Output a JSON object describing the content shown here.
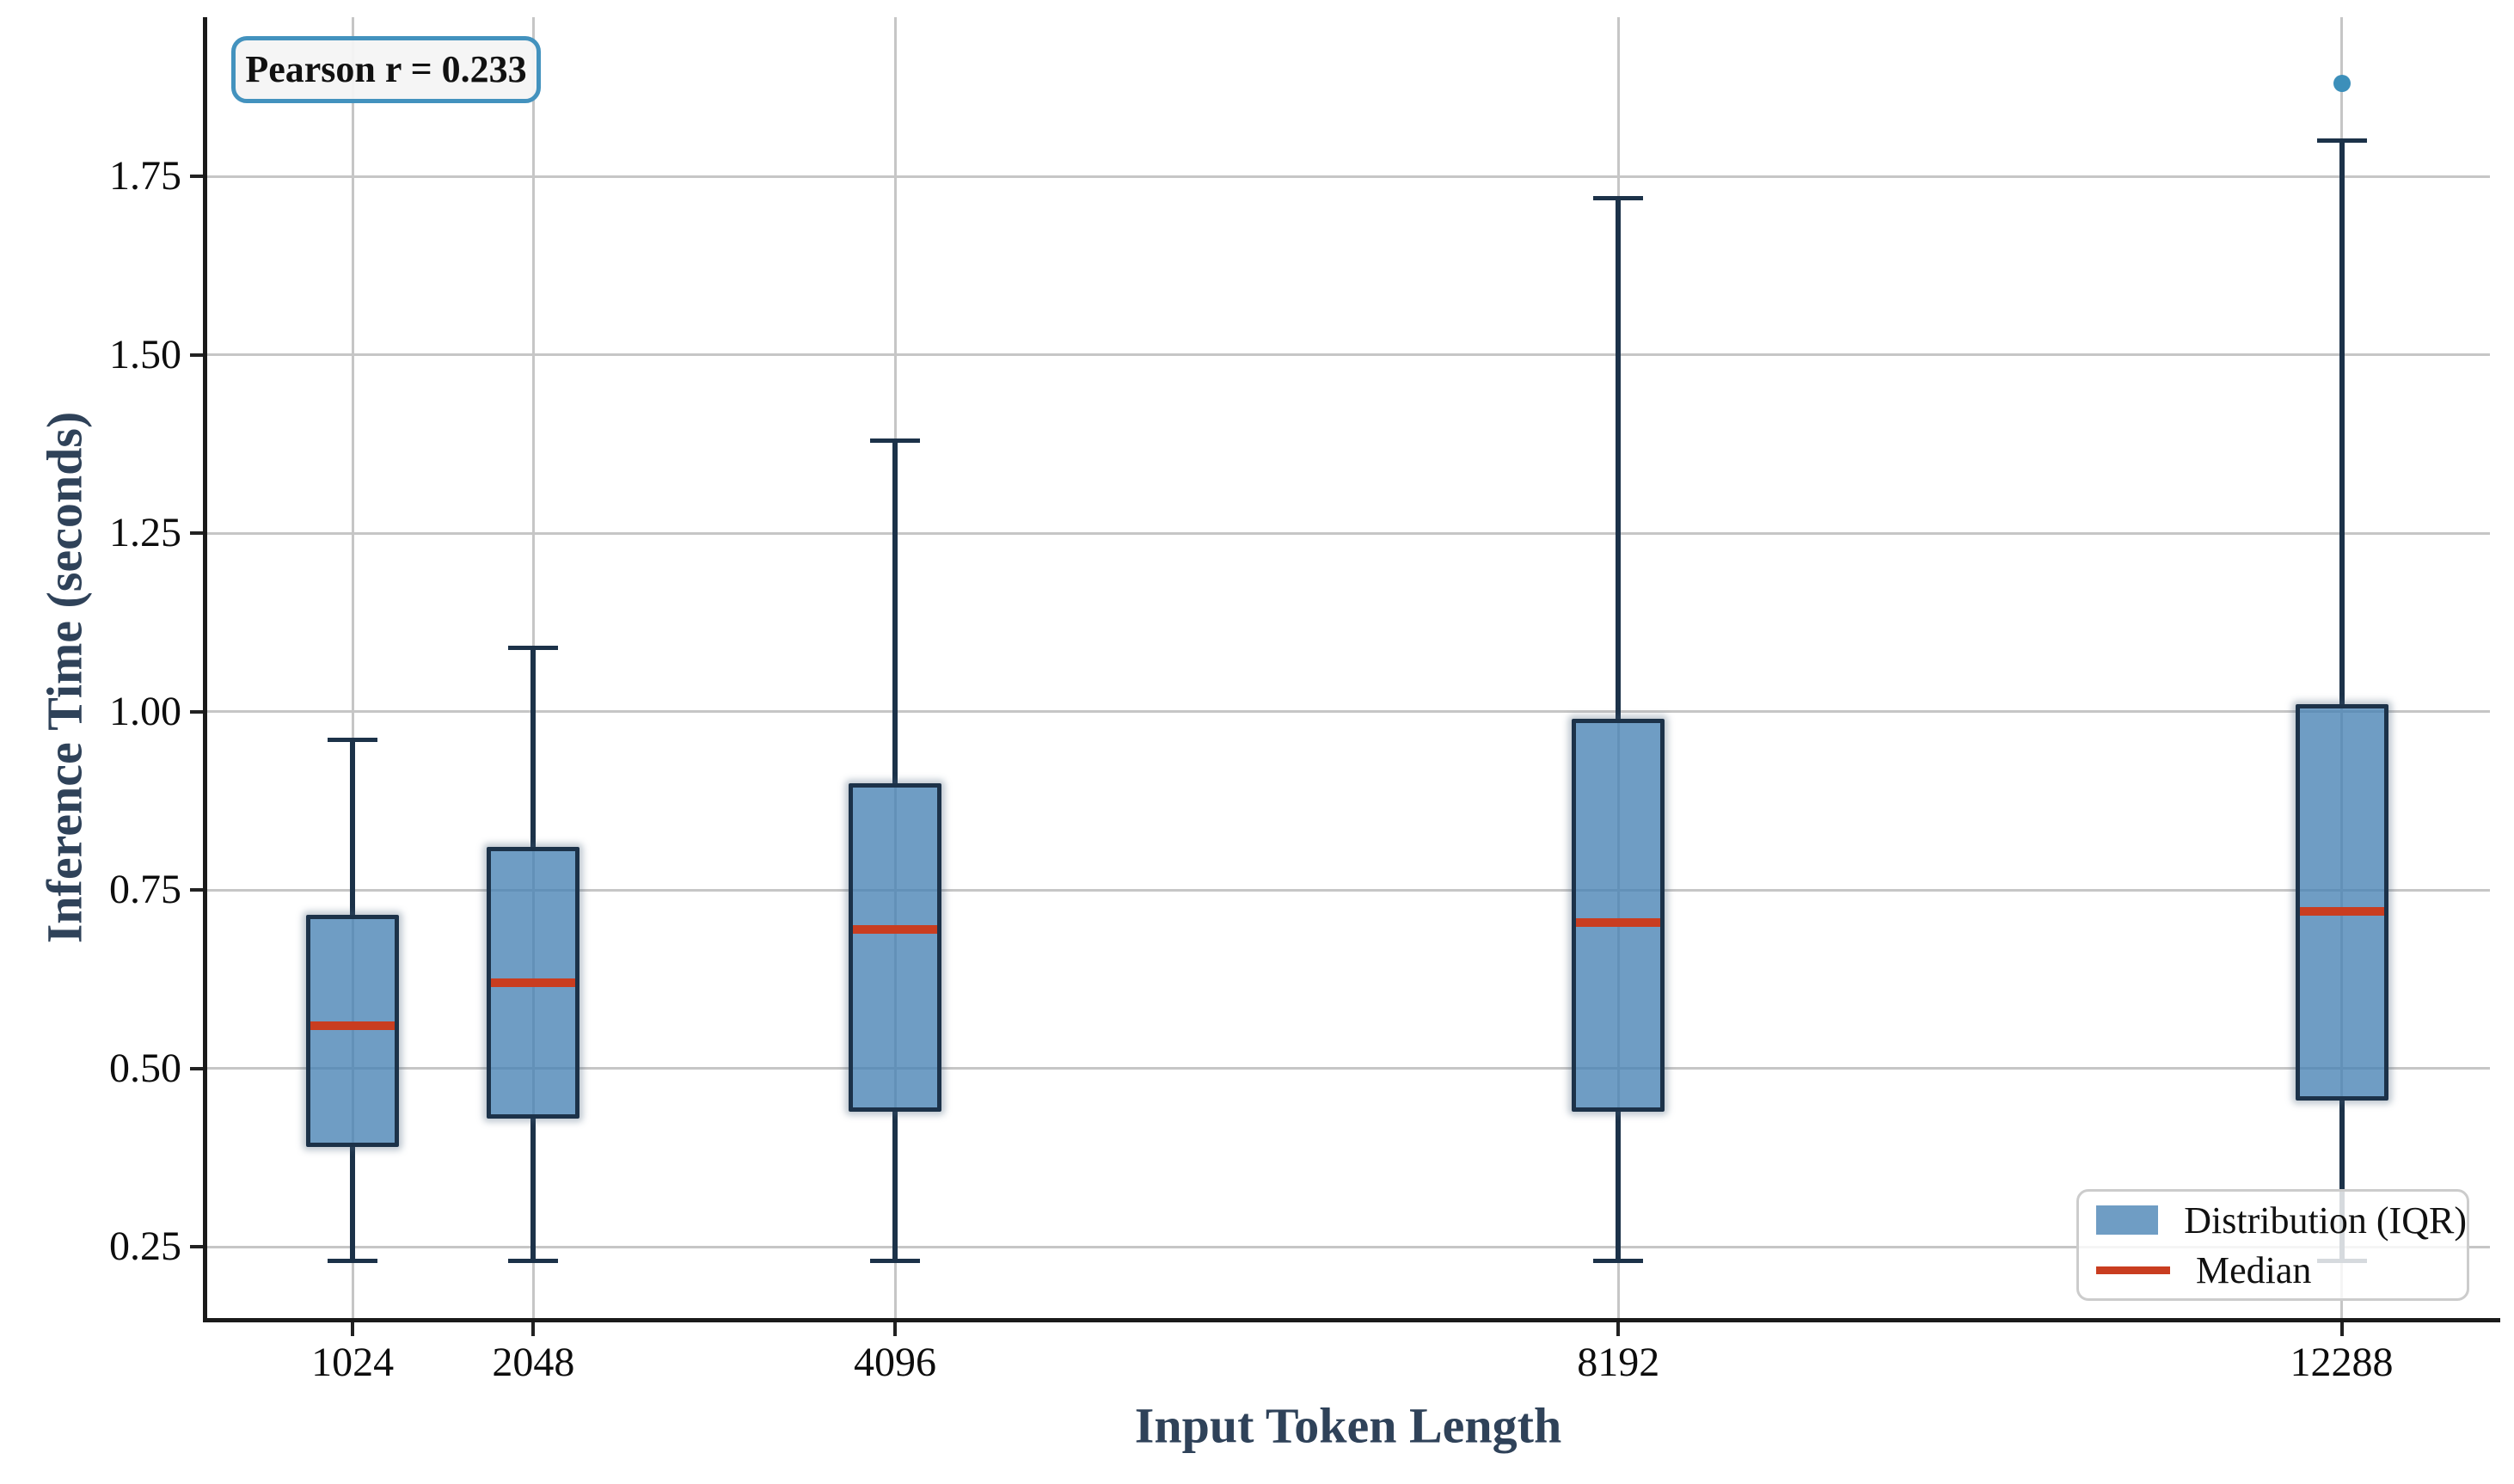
{
  "chart_data": {
    "type": "box",
    "title": "",
    "xlabel": "Input Token Length",
    "ylabel": "Inference Time (seconds)",
    "annotation": "Pearson r = 0.233",
    "pearson_r": 0.233,
    "categories": [
      "1024",
      "2048",
      "4096",
      "8192",
      "12288"
    ],
    "category_values": [
      1024,
      2048,
      4096,
      8192,
      12288
    ],
    "boxes": [
      {
        "category": "1024",
        "whisker_low": 0.23,
        "q1": 0.39,
        "median": 0.56,
        "q3": 0.715,
        "whisker_high": 0.96,
        "outliers": []
      },
      {
        "category": "2048",
        "whisker_low": 0.23,
        "q1": 0.43,
        "median": 0.62,
        "q3": 0.81,
        "whisker_high": 1.09,
        "outliers": []
      },
      {
        "category": "4096",
        "whisker_low": 0.23,
        "q1": 0.44,
        "median": 0.695,
        "q3": 0.9,
        "whisker_high": 1.38,
        "outliers": []
      },
      {
        "category": "8192",
        "whisker_low": 0.23,
        "q1": 0.44,
        "median": 0.705,
        "q3": 0.99,
        "whisker_high": 1.72,
        "outliers": []
      },
      {
        "category": "12288",
        "whisker_low": 0.23,
        "q1": 0.455,
        "median": 0.72,
        "q3": 1.01,
        "whisker_high": 1.8,
        "outliers": [
          1.88
        ]
      }
    ],
    "yticks": [
      0.25,
      0.5,
      0.75,
      1.0,
      1.25,
      1.5,
      1.75
    ],
    "ytick_labels": [
      "0.25",
      "0.50",
      "0.75",
      "1.00",
      "1.25",
      "1.50",
      "1.75"
    ],
    "ylim": [
      0.148,
      1.973
    ],
    "xlim_tokens": [
      191,
      13128
    ],
    "grid": true,
    "legend": {
      "position": "lower right",
      "items": [
        {
          "label": "Distribution (IQR)",
          "type": "patch"
        },
        {
          "label": "Median",
          "type": "line"
        }
      ]
    }
  },
  "colors": {
    "box_fill_rgba": "rgba(70,130,180,0.78)",
    "box_edge": "#1C3249",
    "median": "#C93D20",
    "whisker": "#1C3249",
    "outlier": "#3C8FBA",
    "grid": "#C6C6C6",
    "spine": "#1A1A1A",
    "tick": "#222222",
    "tick_label": "#0D0D0D",
    "axis_title": "#2F4259",
    "annotation_border": "#4392BE",
    "annotation_bg": "#F4F4F4",
    "legend_border": "#CCCCCC"
  }
}
